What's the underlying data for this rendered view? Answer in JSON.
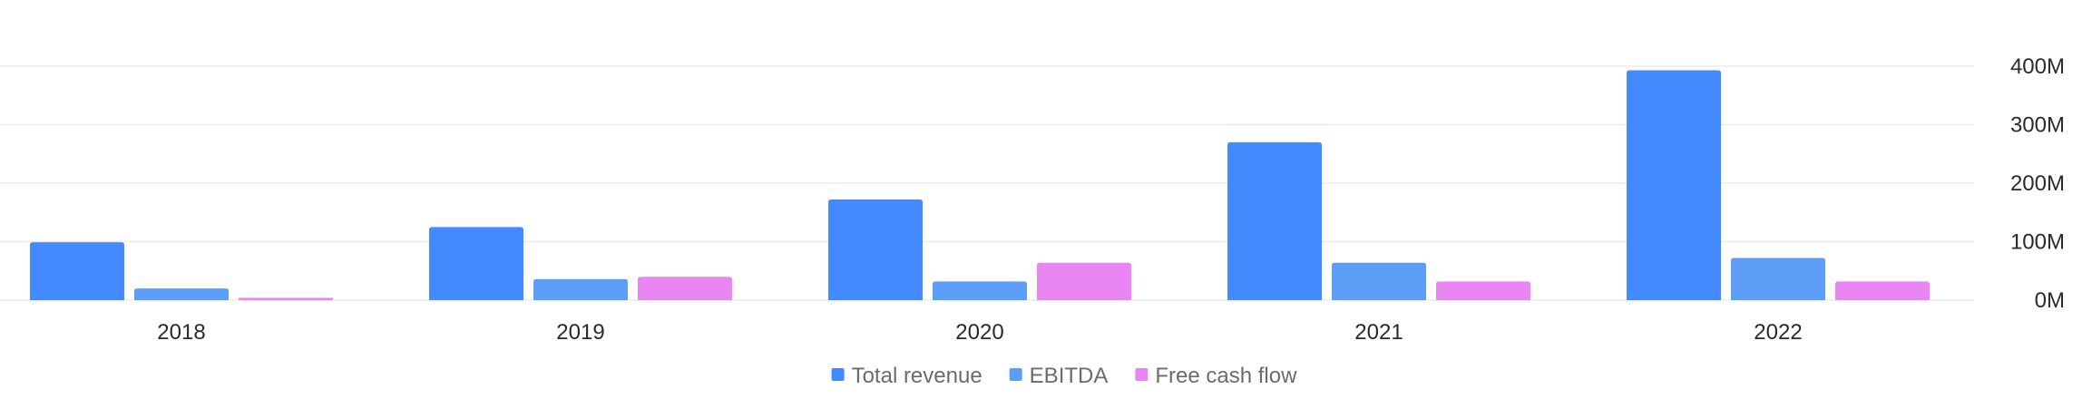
{
  "chart_data": {
    "type": "bar",
    "categories": [
      "2018",
      "2019",
      "2020",
      "2021",
      "2022"
    ],
    "series": [
      {
        "name": "Total revenue",
        "values": [
          99,
          125,
          172,
          270,
          393
        ],
        "color": "#448aff"
      },
      {
        "name": "EBITDA",
        "values": [
          20,
          36,
          32,
          64,
          72
        ],
        "color": "#5c9ef5"
      },
      {
        "name": "Free cash flow",
        "values": [
          4,
          40,
          64,
          32,
          32
        ],
        "color": "#ea86f4"
      }
    ],
    "title": "",
    "xlabel": "",
    "ylabel": "",
    "ylim": [
      0,
      400
    ],
    "yticks": [
      0,
      100,
      200,
      300,
      400
    ],
    "ytick_labels": [
      "0M",
      "100M",
      "200M",
      "300M",
      "400M"
    ],
    "grid": true,
    "y_axis_side": "right",
    "legend": "bottom-center"
  }
}
